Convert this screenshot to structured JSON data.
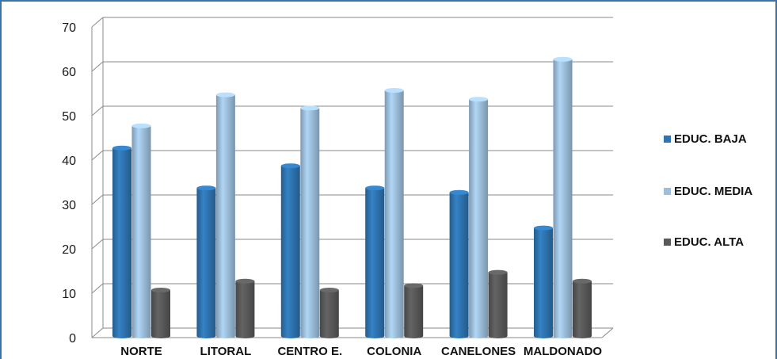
{
  "chart_data": {
    "type": "bar",
    "categories": [
      "NORTE",
      "LITORAL",
      "CENTRO E.",
      "COLONIA",
      "CANELONES",
      "MALDONADO"
    ],
    "series": [
      {
        "name": "EDUC. BAJA",
        "color": "#2e74b0",
        "values": [
          42,
          33,
          38,
          33,
          32,
          24
        ]
      },
      {
        "name": "EDUC. MEDIA",
        "color": "#9dbfdc",
        "values": [
          47,
          54,
          51,
          55,
          53,
          62
        ]
      },
      {
        "name": "EDUC. ALTA",
        "color": "#595959",
        "values": [
          10,
          12,
          10,
          11,
          14,
          12
        ]
      }
    ],
    "ylim": [
      0,
      70
    ],
    "yticks": [
      "0",
      "10",
      "20",
      "30",
      "40",
      "50",
      "60",
      "70"
    ],
    "grid": true,
    "legend_position": "right",
    "style": "3d-cylinder"
  }
}
